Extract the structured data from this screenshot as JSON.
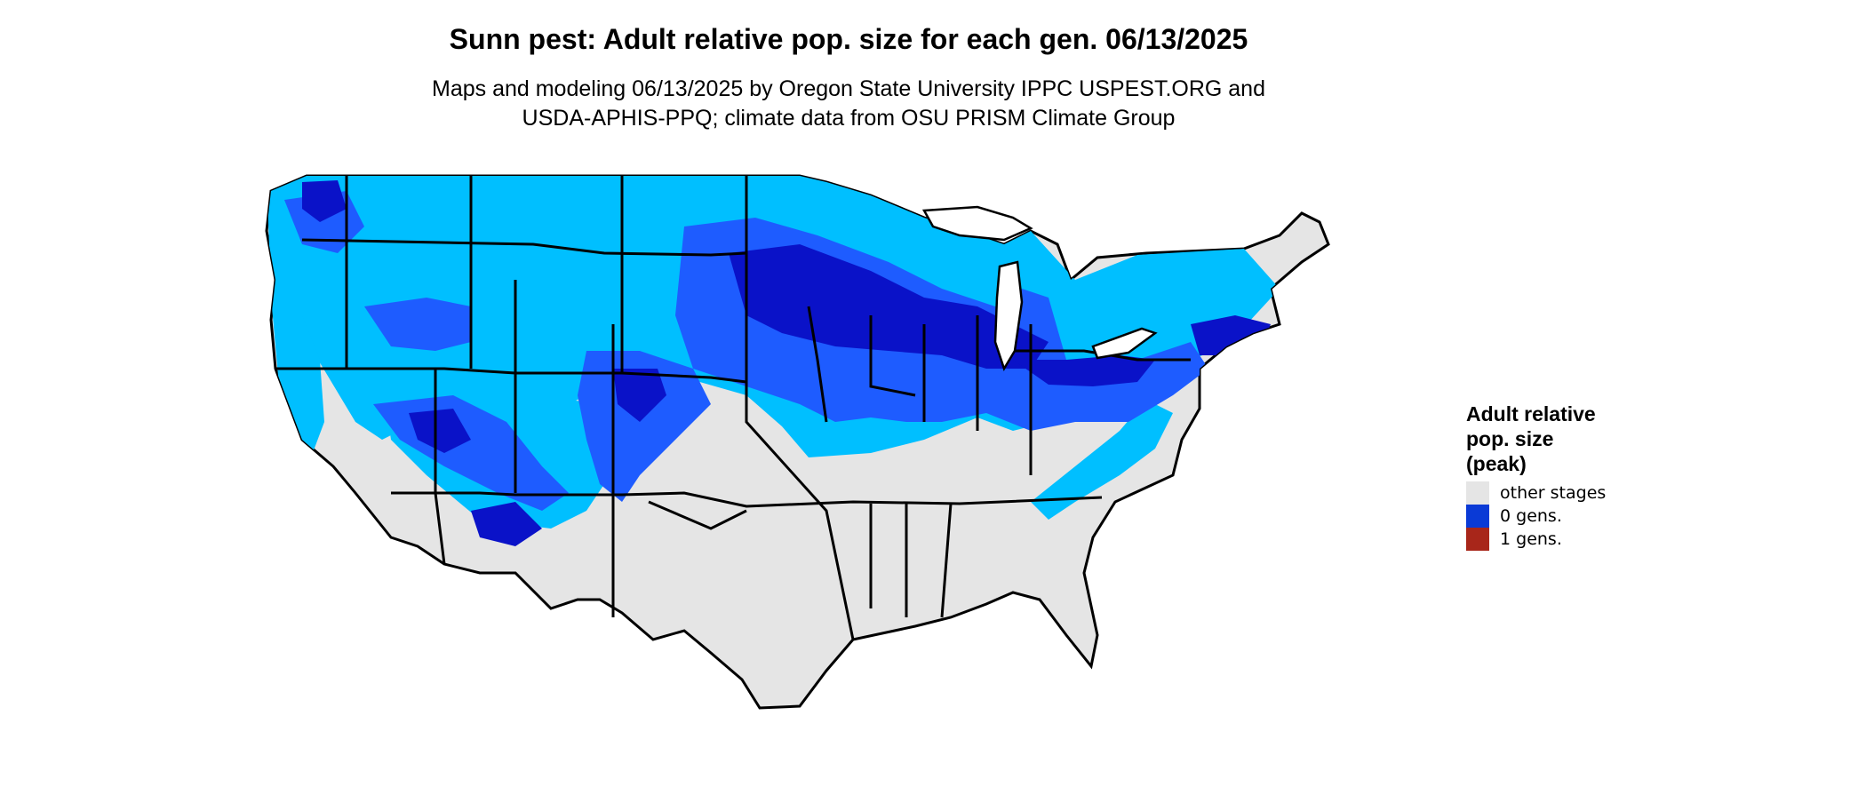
{
  "title": "Sunn pest: Adult relative pop. size for each gen. 06/13/2025",
  "subtitle": {
    "line1": "Maps and modeling 06/13/2025 by Oregon State University IPPC USPEST.ORG and",
    "line2": "USDA-APHIS-PPQ; climate data from OSU PRISM Climate Group"
  },
  "legend": {
    "title_lines": [
      "Adult relative",
      "pop. size",
      "(peak)"
    ],
    "items": [
      {
        "label": "other stages",
        "color": "#e5e5e5"
      },
      {
        "label": "0 gens.",
        "color": "#0a3ad6"
      },
      {
        "label": "1 gens.",
        "color": "#a8261a"
      }
    ]
  },
  "map_colors": {
    "background_land": "#e5e5e5",
    "light_blue": "#00bfff",
    "medium_blue": "#1e5cff",
    "dark_blue": "#0a12c8",
    "boundary": "#000000"
  }
}
